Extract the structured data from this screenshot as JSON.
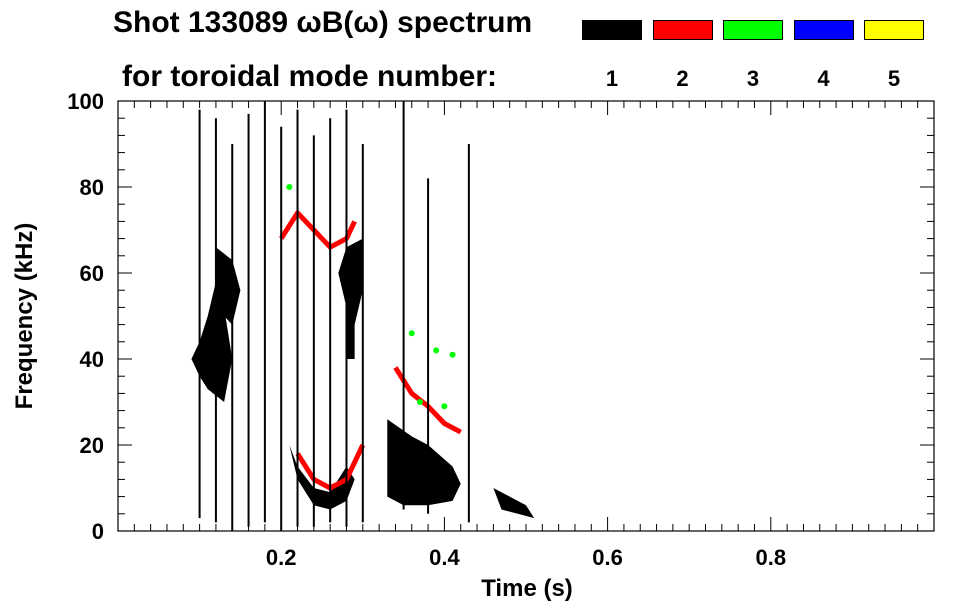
{
  "chart_data": {
    "type": "heatmap",
    "title_line1": "Shot 133089 ωB(ω) spectrum",
    "title_line2": "for toroidal mode number:",
    "xlabel": "Time (s)",
    "ylabel": "Frequency (kHz)",
    "xlim": [
      0.0,
      1.0
    ],
    "ylim": [
      0,
      100
    ],
    "x_ticks": [
      0.2,
      0.4,
      0.6,
      0.8
    ],
    "x_tick_labels": [
      "0.2",
      "0.4",
      "0.6",
      "0.8"
    ],
    "y_ticks": [
      0,
      20,
      40,
      60,
      80,
      100
    ],
    "y_tick_labels": [
      "0",
      "20",
      "40",
      "60",
      "80",
      "100"
    ],
    "grid": false,
    "legend": [
      {
        "mode": "1",
        "color": "#000000"
      },
      {
        "mode": "2",
        "color": "#ff0000"
      },
      {
        "mode": "3",
        "color": "#00ff00"
      },
      {
        "mode": "4",
        "color": "#0000ff"
      },
      {
        "mode": "5",
        "color": "#ffff00"
      }
    ],
    "features": [
      {
        "mode": "1",
        "shape": "blob",
        "points": [
          [
            0.09,
            40
          ],
          [
            0.1,
            44
          ],
          [
            0.11,
            50
          ],
          [
            0.12,
            58
          ],
          [
            0.13,
            52
          ],
          [
            0.14,
            40
          ],
          [
            0.13,
            30
          ],
          [
            0.11,
            33
          ],
          [
            0.1,
            36
          ]
        ]
      },
      {
        "mode": "1",
        "shape": "blob",
        "points": [
          [
            0.12,
            66
          ],
          [
            0.14,
            63
          ],
          [
            0.15,
            56
          ],
          [
            0.14,
            48
          ],
          [
            0.12,
            52
          ]
        ]
      },
      {
        "mode": "1",
        "shape": "blob",
        "points": [
          [
            0.21,
            20
          ],
          [
            0.22,
            12
          ],
          [
            0.24,
            6
          ],
          [
            0.26,
            5
          ],
          [
            0.28,
            7
          ],
          [
            0.29,
            12
          ],
          [
            0.28,
            15
          ],
          [
            0.26,
            9
          ],
          [
            0.24,
            10
          ],
          [
            0.22,
            15
          ]
        ]
      },
      {
        "mode": "1",
        "shape": "blob",
        "points": [
          [
            0.27,
            60
          ],
          [
            0.28,
            66
          ],
          [
            0.3,
            68
          ],
          [
            0.3,
            56
          ],
          [
            0.29,
            48
          ],
          [
            0.29,
            40
          ],
          [
            0.28,
            40
          ],
          [
            0.28,
            52
          ]
        ]
      },
      {
        "mode": "1",
        "shape": "blob",
        "points": [
          [
            0.33,
            26
          ],
          [
            0.36,
            22
          ],
          [
            0.38,
            20
          ],
          [
            0.41,
            15
          ],
          [
            0.42,
            11
          ],
          [
            0.41,
            7
          ],
          [
            0.38,
            6
          ],
          [
            0.35,
            6
          ],
          [
            0.33,
            8
          ]
        ]
      },
      {
        "mode": "1",
        "shape": "blob",
        "points": [
          [
            0.46,
            10
          ],
          [
            0.48,
            8
          ],
          [
            0.5,
            6
          ],
          [
            0.51,
            3
          ],
          [
            0.49,
            4
          ],
          [
            0.47,
            5
          ]
        ]
      },
      {
        "mode": "2",
        "shape": "band",
        "points": [
          [
            0.2,
            68
          ],
          [
            0.22,
            74
          ],
          [
            0.24,
            70
          ],
          [
            0.26,
            66
          ],
          [
            0.28,
            68
          ],
          [
            0.29,
            72
          ]
        ]
      },
      {
        "mode": "2",
        "shape": "band",
        "points": [
          [
            0.22,
            18
          ],
          [
            0.24,
            12
          ],
          [
            0.26,
            10
          ],
          [
            0.28,
            12
          ],
          [
            0.29,
            16
          ],
          [
            0.3,
            20
          ]
        ]
      },
      {
        "mode": "2",
        "shape": "band",
        "points": [
          [
            0.34,
            38
          ],
          [
            0.36,
            32
          ],
          [
            0.38,
            29
          ],
          [
            0.4,
            25
          ],
          [
            0.42,
            23
          ]
        ]
      },
      {
        "mode": "3",
        "shape": "dots",
        "points": [
          [
            0.21,
            80
          ],
          [
            0.36,
            46
          ],
          [
            0.39,
            42
          ],
          [
            0.41,
            41
          ],
          [
            0.4,
            29
          ],
          [
            0.37,
            30
          ]
        ]
      },
      {
        "mode": "1",
        "shape": "streaks",
        "points": [
          [
            0.1,
            3,
            98
          ],
          [
            0.12,
            2,
            96
          ],
          [
            0.14,
            0,
            90
          ],
          [
            0.16,
            1,
            97
          ],
          [
            0.18,
            2,
            100
          ],
          [
            0.2,
            0,
            94
          ],
          [
            0.22,
            1,
            98
          ],
          [
            0.24,
            1,
            92
          ],
          [
            0.26,
            2,
            96
          ],
          [
            0.28,
            1,
            98
          ],
          [
            0.3,
            2,
            90
          ],
          [
            0.35,
            5,
            100
          ],
          [
            0.38,
            4,
            82
          ],
          [
            0.43,
            2,
            90
          ]
        ]
      }
    ]
  }
}
